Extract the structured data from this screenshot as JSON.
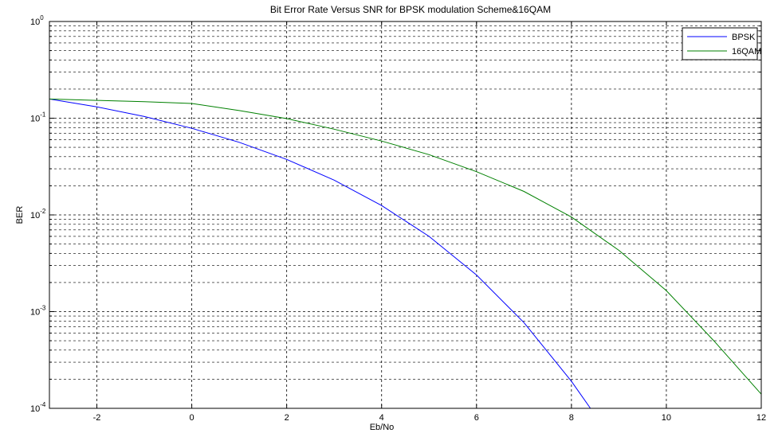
{
  "chart_data": {
    "type": "line",
    "title": "Bit Error Rate Versus SNR for BPSK modulation Scheme&16QAM",
    "xlabel": "Eb/No",
    "ylabel": "BER",
    "xlim": [
      -3,
      12
    ],
    "ylim": [
      0.0001,
      1
    ],
    "yscale": "log",
    "grid": true,
    "legend_position": "top-right",
    "x_ticks": [
      -2,
      0,
      2,
      4,
      6,
      8,
      10,
      12
    ],
    "y_ticks": [
      {
        "value": 1,
        "base": "10",
        "exp": "0"
      },
      {
        "value": 0.1,
        "base": "10",
        "exp": "-1"
      },
      {
        "value": 0.01,
        "base": "10",
        "exp": "-2"
      },
      {
        "value": 0.001,
        "base": "10",
        "exp": "-3"
      },
      {
        "value": 0.0001,
        "base": "10",
        "exp": "-4"
      }
    ],
    "series": [
      {
        "name": "BPSK",
        "color": "#0000ff",
        "x": [
          -3,
          -2,
          -1,
          0,
          1,
          2,
          3,
          4,
          5,
          6,
          7,
          8,
          8.4
        ],
        "y": [
          0.158,
          0.131,
          0.104,
          0.0786,
          0.0563,
          0.0375,
          0.0229,
          0.0125,
          0.006,
          0.00239,
          0.00077,
          0.00019,
          0.0001
        ]
      },
      {
        "name": "16QAM",
        "color": "#008000",
        "x": [
          -3,
          -2,
          -1,
          0,
          1,
          2,
          3,
          4,
          5,
          6,
          7,
          8,
          9,
          10,
          11,
          12
        ],
        "y": [
          0.158,
          0.153,
          0.148,
          0.142,
          0.12,
          0.099,
          0.077,
          0.058,
          0.042,
          0.028,
          0.0175,
          0.0095,
          0.0043,
          0.00165,
          0.0005,
          0.00014
        ]
      }
    ]
  }
}
